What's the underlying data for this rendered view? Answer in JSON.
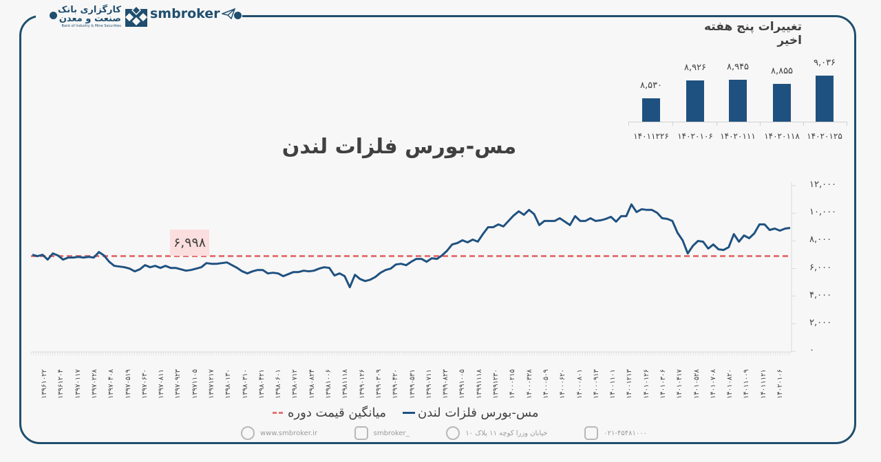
{
  "header": {
    "logo_fa_line1": "کارگزاری بانک",
    "logo_fa_line2": "صنعت و معدن",
    "logo_en": "Bank of Industry & Mine Securities",
    "brand": "smbroker",
    "brand_icon": "paper-plane-icon"
  },
  "weekly": {
    "title": "تغییرات پنج هفته اخیر"
  },
  "main": {
    "title": "مس-بورس فلزات لندن",
    "avg_label": "۶,۹۹۸"
  },
  "legend": {
    "series_label": "مس-بورس فلزات لندن",
    "avg_label": "میانگین قیمت دوره"
  },
  "footer": {
    "website": "www.smbroker.ir",
    "instagram": "smbroker_",
    "address": "خیابان وزرا کوچه ۱۱ پلاک ۱۰",
    "phone": "۰۲۱-۴۵۴۸۱۰۰۰"
  },
  "colors": {
    "frame": "#1f4e6e",
    "series": "#1f5180",
    "average": "#e57373",
    "avg_label_bg": "#fbdede"
  },
  "chart_data": [
    {
      "type": "bar",
      "title": "تغییرات پنج هفته اخیر",
      "categories": [
        "۱۴۰۱۱۲۲۶",
        "۱۴۰۲۰۱۰۶",
        "۱۴۰۲۰۱۱۱",
        "۱۴۰۲۰۱۱۸",
        "۱۴۰۲۰۱۲۵"
      ],
      "values": [
        8530,
        8926,
        8945,
        8855,
        9036
      ],
      "value_labels": [
        "۸,۵۳۰",
        "۸,۹۲۶",
        "۸,۹۴۵",
        "۸,۸۵۵",
        "۹,۰۳۶"
      ],
      "xlabel": "",
      "ylabel": "",
      "grid": false
    },
    {
      "type": "line",
      "title": "مس-بورس فلزات لندن",
      "xlabel": "",
      "ylabel": "",
      "ylim": [
        0,
        12000
      ],
      "yticks": [
        0,
        2000,
        4000,
        6000,
        8000,
        10000,
        12000
      ],
      "ytick_labels": [
        "۰",
        "۲,۰۰۰",
        "۴,۰۰۰",
        "۶,۰۰۰",
        "۸,۰۰۰",
        "۱۰,۰۰۰",
        "۱۲,۰۰۰"
      ],
      "y_axis_position": "right",
      "grid": false,
      "legend_position": "bottom",
      "x_tick_labels": [
        "۱۳۹۶۱۰۲۲",
        "۱۳۹۶۱۲۰۴",
        "۱۳۹۷۰۱۱۷",
        "۱۳۹۷۰۲۲۸",
        "۱۳۹۷۰۴۰۸",
        "۱۳۹۷۰۵۱۹",
        "۱۳۹۷۰۶۳۰",
        "۱۳۹۷۰۸۱۱",
        "۱۳۹۷۰۹۲۳",
        "۱۳۹۷۱۱۰۵",
        "۱۳۹۷۱۲۱۷",
        "۱۳۹۸۰۱۳۰",
        "۱۳۹۸۰۳۱۰",
        "۱۳۹۸۰۴۲۱",
        "۱۳۹۸۰۶۰۱",
        "۱۳۹۸۰۷۱۲",
        "۱۳۹۸۰۸۲۴",
        "۱۳۹۸۱۰۰۶",
        "۱۳۹۸۱۱۱۸",
        "۱۳۹۹۰۱۲۶",
        "۱۳۹۹۰۳۰۹",
        "۱۳۹۹۰۴۲۰",
        "۱۳۹۹۰۵۳۱",
        "۱۳۹۹۰۷۱۱",
        "۱۳۹۹۰۸۲۳",
        "۱۳۹۹۱۰۰۵",
        "۱۳۹۹۱۱۱۸",
        "۱۳۹۹۱۲۳۰",
        "۱۴۰۰۰۲۱۵",
        "۱۴۰۰۰۳۲۸",
        "۱۴۰۰۰۵۰۹",
        "۱۴۰۰۰۶۲۰",
        "۱۴۰۰۰۸۰۱",
        "۱۴۰۰۰۹۱۳",
        "۱۴۰۰۱۱۰۱",
        "۱۴۰۰۱۲۱۳",
        "۱۴۰۱۰۱۲۶",
        "۱۴۰۱۰۳۰۶",
        "۱۴۰۱۰۴۱۷",
        "۱۴۰۱۰۵۲۸",
        "۱۴۰۱۰۷۰۸",
        "۱۴۰۱۰۸۲۰",
        "۱۴۰۱۱۰۰۹",
        "۱۴۰۱۱۱۲۱",
        "۱۴۰۲۰۱۰۶"
      ],
      "series": [
        {
          "name": "مس-بورس فلزات لندن",
          "values": [
            6990,
            6890,
            6990,
            6640,
            7090,
            6940,
            6640,
            6790,
            6790,
            6840,
            6790,
            6840,
            6790,
            7190,
            6940,
            6490,
            6190,
            6140,
            6090,
            5990,
            5790,
            5940,
            6240,
            6090,
            6190,
            6040,
            6190,
            6040,
            6040,
            5940,
            5840,
            5890,
            5990,
            6090,
            6390,
            6340,
            6340,
            6390,
            6440,
            6240,
            6040,
            5790,
            5640,
            5790,
            5890,
            5890,
            5640,
            5690,
            5640,
            5440,
            5590,
            5740,
            5740,
            5840,
            5790,
            5840,
            5990,
            6090,
            6040,
            5490,
            5640,
            5440,
            4640,
            5540,
            5240,
            5090,
            5190,
            5390,
            5690,
            5890,
            5990,
            6290,
            6340,
            6240,
            6490,
            6690,
            6690,
            6490,
            6740,
            6690,
            6940,
            7290,
            7740,
            7840,
            8040,
            7890,
            8090,
            7940,
            8490,
            8990,
            8990,
            9190,
            9040,
            9440,
            9840,
            10140,
            9890,
            10240,
            9940,
            9140,
            9440,
            9440,
            9440,
            9640,
            9390,
            9140,
            9790,
            9440,
            9440,
            9640,
            9440,
            9490,
            9590,
            9740,
            9390,
            9790,
            9790,
            10640,
            10090,
            10290,
            10240,
            10240,
            10040,
            9640,
            9590,
            9440,
            8590,
            8040,
            7090,
            7640,
            7990,
            7940,
            7440,
            7740,
            7390,
            7340,
            7540,
            8490,
            7940,
            8390,
            8190,
            8540,
            9190,
            9190,
            8790,
            8890,
            8740,
            8890,
            8940
          ]
        },
        {
          "name": "میانگین قیمت دوره",
          "constant": 6998
        }
      ]
    }
  ]
}
